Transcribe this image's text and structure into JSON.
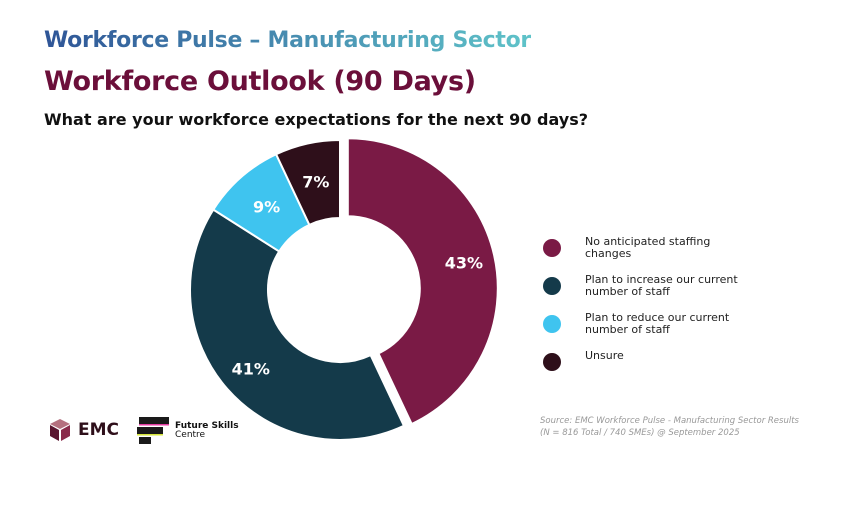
{
  "header": {
    "series_title": "Workforce Pulse – Manufacturing Sector",
    "title": "Workforce Outlook (90 Days)",
    "question": "What are your workforce expectations for the next 90 days?"
  },
  "chart_data": {
    "type": "pie",
    "subtype": "donut",
    "title": "Workforce Outlook (90 Days)",
    "categories": [
      "No anticipated staffing changes",
      "Plan to increase our current number of staff",
      "Plan to reduce our current number of staff",
      "Unsure"
    ],
    "values": [
      43,
      41,
      9,
      7
    ],
    "labels": [
      "43%",
      "41%",
      "9%",
      "7%"
    ],
    "colors": [
      "#7a1a45",
      "#143a4a",
      "#3fc4ef",
      "#2e0f1a"
    ],
    "legend_placement": "right"
  },
  "source": {
    "line1": "Source: EMC Workforce Pulse - Manufacturing Sector Results",
    "line2": "(N = 816 Total / 740 SMEs) @ September 2025"
  },
  "logos": {
    "emc": "EMC",
    "fsc_line1": "Future Skills",
    "fsc_line2": "Centre"
  }
}
